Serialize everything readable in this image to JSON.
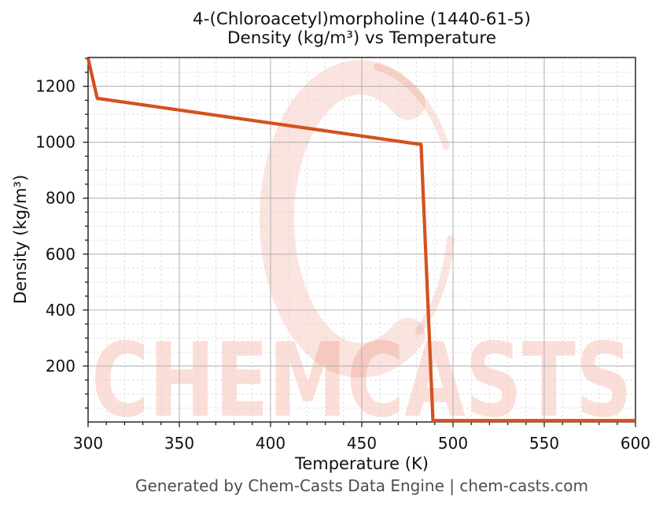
{
  "page": {
    "background": "#ffffff"
  },
  "title": {
    "line1": "4-(Chloroacetyl)morpholine (1440-61-5)",
    "line2": "Density (kg/m³) vs Temperature"
  },
  "footer": {
    "text": "Generated by Chem-Casts Data Engine | chem-casts.com",
    "color": "#4d4d4d"
  },
  "watermark": {
    "text": "CHEMCASTS",
    "color": "#e95a36",
    "text_opacity": 0.2,
    "swoosh_opacity": 0.16
  },
  "chart_data": {
    "type": "line",
    "title": "4-(Chloroacetyl)morpholine (1440-61-5) Density (kg/m³) vs Temperature",
    "xlabel": "Temperature (K)",
    "ylabel": "Density (kg/m³)",
    "xlim": [
      300,
      600
    ],
    "ylim": [
      0,
      1303
    ],
    "x_major_ticks": [
      300,
      350,
      400,
      450,
      500,
      550,
      600
    ],
    "y_major_ticks": [
      200,
      400,
      600,
      800,
      1000,
      1200
    ],
    "x_minor_step": 10,
    "y_minor_step": 50,
    "grid": {
      "major": true,
      "minor": true
    },
    "legend": "none",
    "axis_color": "#1a1a1a",
    "major_grid_color": "#b5b5b5",
    "minor_grid_color": "#d9d9d9",
    "series": [
      {
        "name": "Density",
        "color": "#d4511e",
        "width": 4.2,
        "points": [
          [
            300,
            1300
          ],
          [
            305,
            1157
          ],
          [
            482.5,
            992
          ],
          [
            489,
            5
          ],
          [
            600,
            5
          ]
        ]
      }
    ]
  }
}
